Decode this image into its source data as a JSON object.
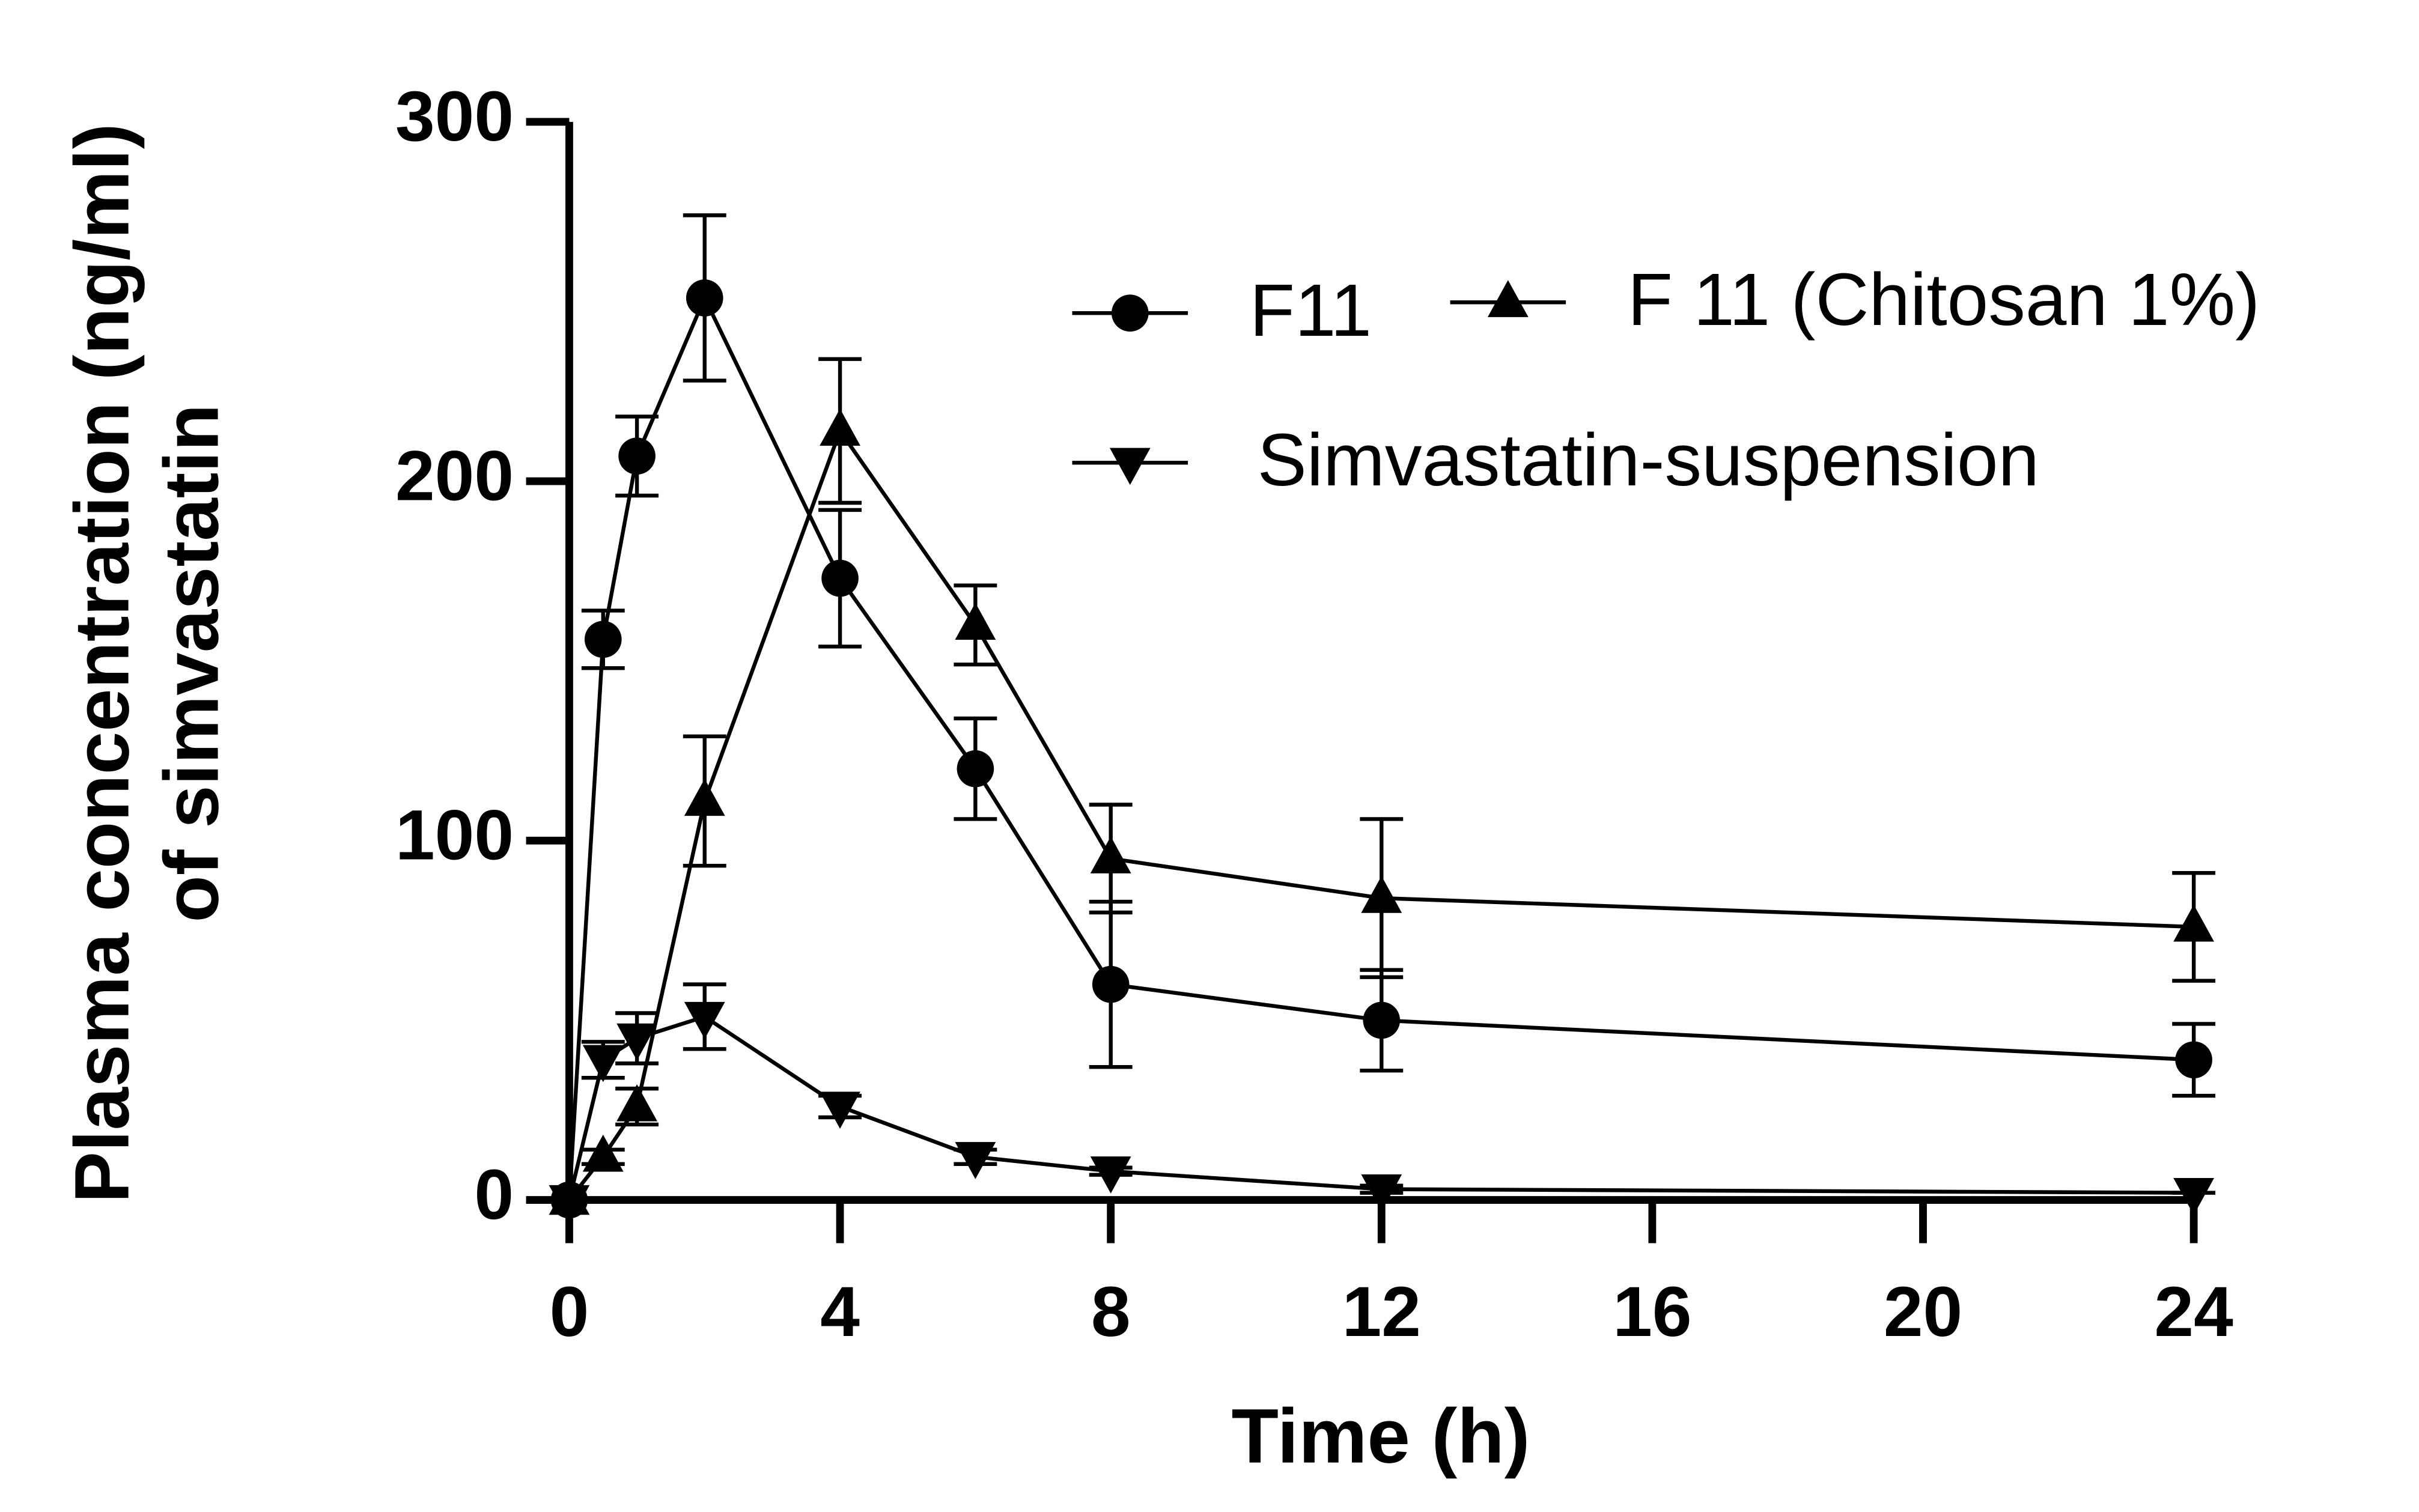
{
  "chart_data": {
    "type": "line",
    "x_label": "Time (h)",
    "y_label": [
      "Plasma concentration (ng/ml)",
      "of simvastatin"
    ],
    "x": [
      0,
      0.5,
      1,
      2,
      4,
      6,
      8,
      12,
      24
    ],
    "series": [
      {
        "name": "F11",
        "color": "#000000",
        "marker": "circle",
        "values": [
          0,
          156,
          207,
          251,
          173,
          120,
          60,
          50,
          39
        ],
        "errors": [
          0,
          8,
          11,
          23,
          19,
          14,
          23,
          14,
          10
        ]
      },
      {
        "name": "F 11 (Chitosan 1%)",
        "color": "#000000",
        "marker": "triangle-up",
        "values": [
          0,
          12,
          26,
          111,
          214,
          160,
          95,
          84,
          76
        ],
        "errors": [
          0,
          2,
          5,
          18,
          20,
          11,
          15,
          22,
          15
        ]
      },
      {
        "name": "Simvastatin-suspension",
        "color": "#000000",
        "marker": "triangle-down",
        "values": [
          0,
          39,
          45,
          51,
          26,
          12,
          8,
          3,
          2
        ],
        "errors": [
          0,
          5,
          7,
          9,
          3,
          2,
          1,
          1,
          0
        ]
      }
    ],
    "xlim": [
      0,
      24
    ],
    "xticks": [
      0,
      4,
      8,
      12,
      16,
      20,
      24
    ],
    "ylim": [
      0,
      300
    ],
    "yticks": [
      0,
      100,
      200,
      300
    ],
    "grid": false,
    "legend": "top-right"
  }
}
